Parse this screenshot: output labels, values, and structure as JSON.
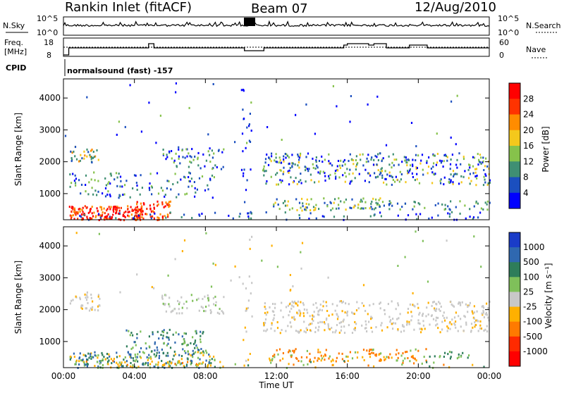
{
  "header": {
    "station": "Rankin Inlet (fitACF)",
    "beam": "Beam 07",
    "date": "12/Aug/2010"
  },
  "noise_panel": {
    "left_label": "N.Sky",
    "right_label": "N.Search",
    "left_ticks": [
      "10^5",
      "10^0"
    ],
    "right_ticks": [
      "10^5",
      "10^0"
    ]
  },
  "freq_panel": {
    "left_label_line1": "Freq.",
    "left_label_line2": "[MHz]",
    "left_ticks": [
      "18",
      "8"
    ],
    "right_label": "Nave",
    "right_ticks": [
      "60",
      "0"
    ]
  },
  "cpid_panel": {
    "label": "CPID",
    "text": "normalsound (fast) -157"
  },
  "chart_data": [
    {
      "type": "heatmap",
      "name": "power",
      "ylabel": "Slant Range [km]",
      "ylim": [
        180,
        4600
      ],
      "yticks": [
        "1000",
        "2000",
        "3000",
        "4000"
      ],
      "xlim": [
        0,
        24
      ],
      "colorbar_label": "Power [dB]",
      "colorbar_ticks": [
        "4",
        "8",
        "12",
        "16",
        "20",
        "24",
        "28"
      ],
      "colorbar_colors": [
        "#0000ff",
        "#1b4fbf",
        "#3f8f73",
        "#86c24b",
        "#f4c81c",
        "#ff8c00",
        "#ff3300",
        "#ff0000"
      ]
    },
    {
      "type": "heatmap",
      "name": "velocity",
      "ylabel": "Slant Range [km]",
      "ylim": [
        180,
        4600
      ],
      "yticks": [
        "1000",
        "2000",
        "3000",
        "4000"
      ],
      "xlim": [
        0,
        24
      ],
      "xlabel": "Time UT",
      "xticks": [
        "00:00",
        "04:00",
        "08:00",
        "12:00",
        "16:00",
        "20:00",
        "00:00"
      ],
      "colorbar_label": "Velocity [m s⁻¹]",
      "colorbar_ticks": [
        "1000",
        "500",
        "100",
        "25",
        "-25",
        "-100",
        "-500",
        "-1000"
      ],
      "colorbar_colors": [
        "#1a3cc8",
        "#2f68b0",
        "#2e7d5a",
        "#7fc05a",
        "#c8c8c8",
        "#ffb000",
        "#ff7a00",
        "#ff2a00",
        "#ff0000"
      ]
    }
  ]
}
